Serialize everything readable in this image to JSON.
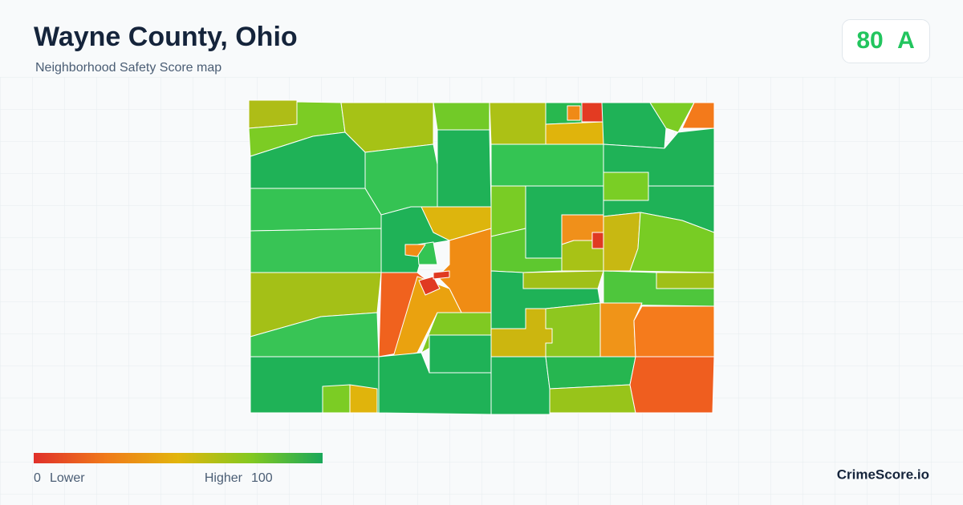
{
  "header": {
    "title": "Wayne County, Ohio",
    "subtitle": "Neighborhood Safety Score map"
  },
  "score": {
    "value": 80,
    "grade": "A"
  },
  "legend": {
    "min": 0,
    "min_label": "Lower",
    "max_label": "Higher",
    "max": 100
  },
  "brand": "CrimeScore.io"
}
